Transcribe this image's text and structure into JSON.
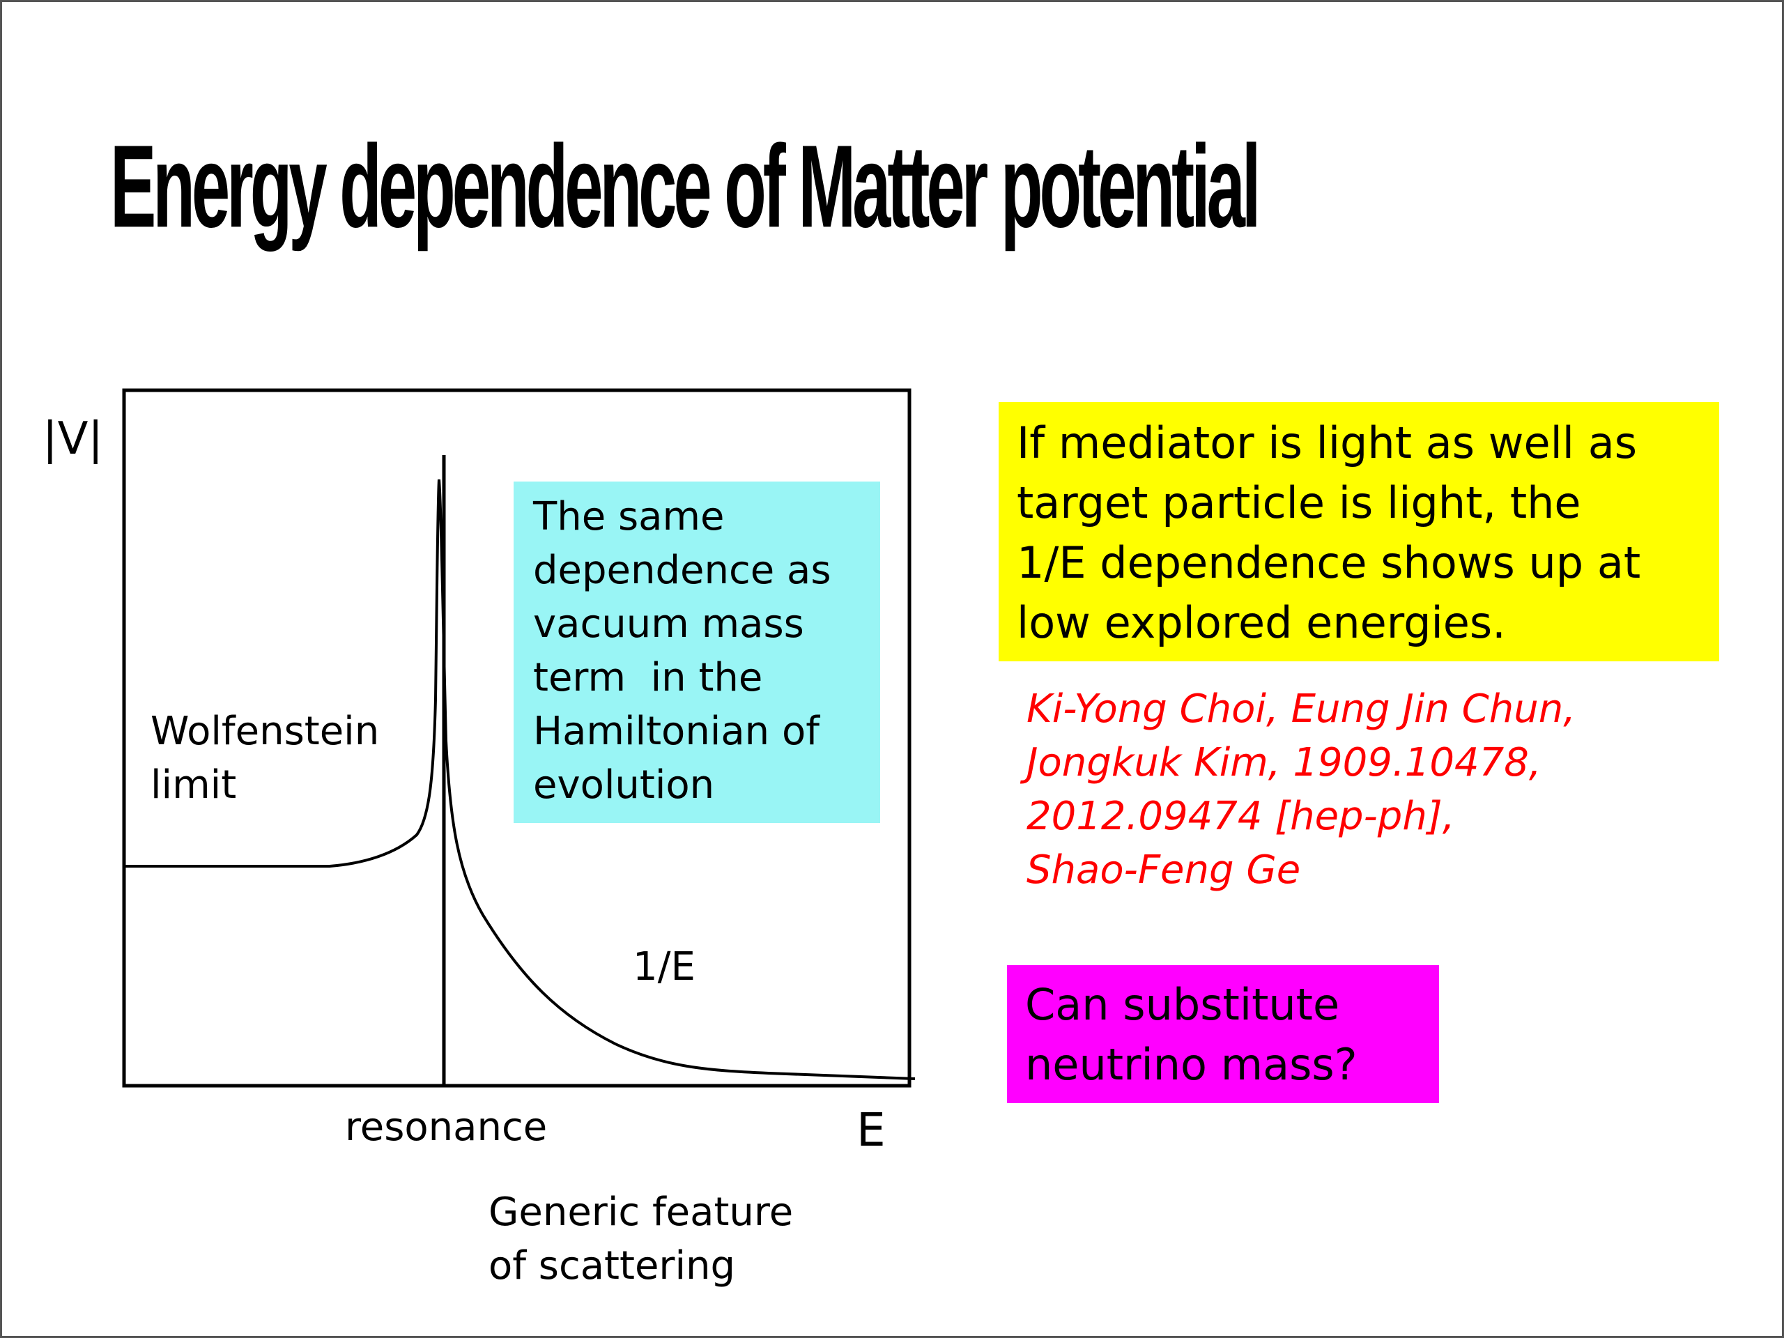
{
  "slide": {
    "title": "Energy dependence of Matter potential"
  },
  "diagram": {
    "y_axis_label": "|V|",
    "x_axis_label": "E",
    "resonance_label": "resonance",
    "wolfenstein_label": [
      "Wolfenstein",
      "limit"
    ],
    "inverse_e_label": "1/E",
    "caption": [
      "Generic feature",
      "of scattering"
    ],
    "curve_color": "#000000"
  },
  "cyan_box": {
    "lines": [
      "The same",
      "dependence as",
      "vacuum mass",
      "term  in the",
      "Hamiltonian of",
      "evolution"
    ],
    "color": "#99f5f5"
  },
  "yellow_box": {
    "lines": [
      "If mediator is light as well as",
      "target particle is light, the",
      "1/E dependence shows up at",
      "low explored energies."
    ],
    "color": "#ffff00"
  },
  "citation": {
    "lines": [
      "Ki-Yong Choi, Eung Jin Chun,",
      "Jongkuk Kim, 1909.10478,",
      "2012.09474 [hep-ph],",
      "Shao-Feng Ge"
    ],
    "color": "#ff0000"
  },
  "magenta_box": {
    "lines": [
      "Can substitute",
      "neutrino mass?"
    ],
    "color": "#ff00ff"
  }
}
